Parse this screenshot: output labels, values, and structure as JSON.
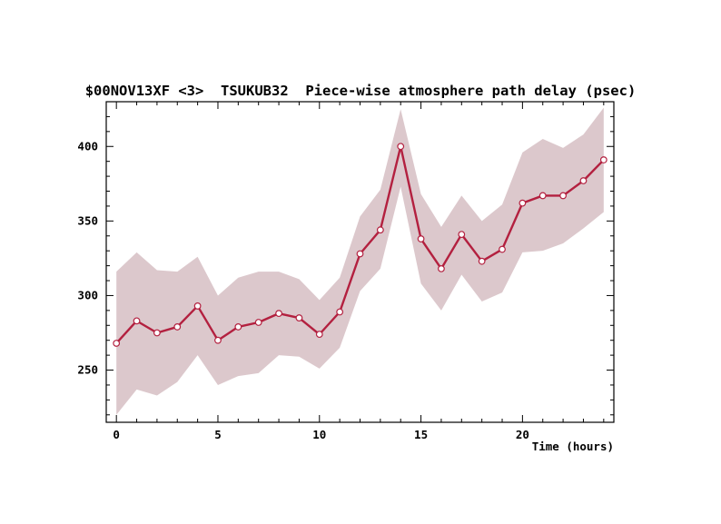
{
  "chart_data": {
    "type": "line",
    "title": "$00NOV13XF <3>  TSUKUB32  Piece-wise atmosphere path delay (psec)",
    "xlabel": "Time (hours)",
    "ylabel": "",
    "xlim": [
      -0.5,
      24.5
    ],
    "ylim": [
      215,
      430
    ],
    "x_ticks": [
      0,
      5,
      10,
      15,
      20
    ],
    "y_ticks": [
      250,
      300,
      350,
      400
    ],
    "x_minor_step": 1,
    "y_minor_step": 10,
    "grid": false,
    "legend": "none",
    "colors": {
      "line": "#b3203f",
      "band": "#dcc8cc",
      "marker_fill": "#ffffff"
    },
    "series": [
      {
        "x": [
          0,
          1,
          2,
          3,
          4,
          5,
          6,
          7,
          8,
          9,
          10,
          11,
          12,
          13,
          14,
          15,
          16,
          17,
          18,
          19,
          20,
          21,
          22,
          23,
          24
        ],
        "values": [
          268,
          283,
          275,
          279,
          293,
          270,
          279,
          282,
          288,
          285,
          274,
          289,
          328,
          344,
          400,
          338,
          318,
          341,
          323,
          331,
          362,
          367,
          367,
          377,
          391
        ],
        "upper": [
          316,
          329,
          317,
          316,
          326,
          300,
          312,
          316,
          316,
          311,
          297,
          312,
          353,
          371,
          425,
          368,
          346,
          367,
          350,
          361,
          396,
          405,
          399,
          408,
          426
        ],
        "lower": [
          220,
          237,
          233,
          242,
          260,
          240,
          246,
          248,
          260,
          259,
          251,
          265,
          303,
          318,
          373,
          308,
          290,
          314,
          296,
          302,
          329,
          330,
          335,
          345,
          356
        ]
      }
    ]
  }
}
